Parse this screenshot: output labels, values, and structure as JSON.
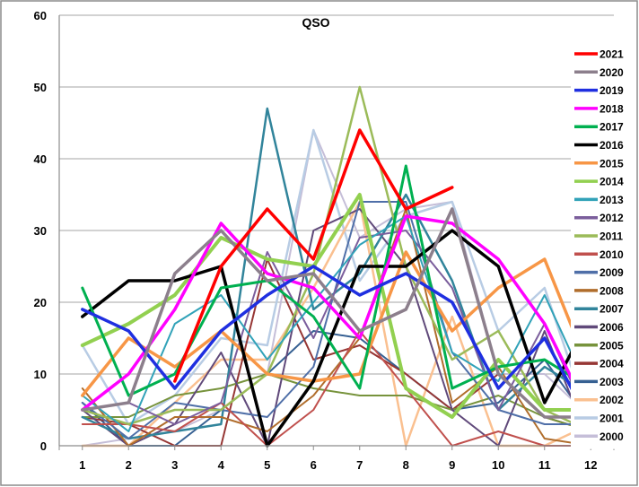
{
  "chart_data": {
    "type": "line",
    "title": "QSO",
    "xlabel": "",
    "ylabel": "",
    "x": [
      1,
      2,
      3,
      4,
      5,
      6,
      7,
      8,
      9,
      10,
      11,
      12
    ],
    "x_tick_labels": [
      "1",
      "2",
      "3",
      "4",
      "5",
      "6",
      "7",
      "8",
      "9",
      "10",
      "11",
      "12"
    ],
    "ylim": [
      0,
      60
    ],
    "y_ticks": [
      0,
      10,
      20,
      30,
      40,
      50,
      60
    ],
    "y_tick_labels": [
      "0",
      "10",
      "20",
      "30",
      "40",
      "50",
      "60"
    ],
    "grid": "horizontal",
    "legend_position": "right",
    "series": [
      {
        "name": "2021",
        "color": "#ff0000",
        "width": 3.5,
        "values": [
          null,
          null,
          9,
          25,
          33,
          26,
          44,
          33,
          36,
          null,
          null,
          null
        ]
      },
      {
        "name": "2020",
        "color": "#8c7f8c",
        "width": 3.5,
        "values": [
          5,
          6,
          24,
          30,
          23,
          24,
          16,
          19,
          33,
          10,
          4,
          4
        ]
      },
      {
        "name": "2019",
        "color": "#1f2fe0",
        "width": 3.5,
        "values": [
          19,
          16,
          8,
          16,
          21,
          25,
          21,
          24,
          20,
          8,
          15,
          3
        ]
      },
      {
        "name": "2018",
        "color": "#ff00ff",
        "width": 3.5,
        "values": [
          5,
          10,
          19,
          31,
          24,
          22,
          15,
          32,
          31,
          26,
          17,
          4
        ]
      },
      {
        "name": "2017",
        "color": "#00b050",
        "width": 3,
        "values": [
          22,
          7,
          10,
          22,
          23,
          18,
          8,
          39,
          8,
          11,
          12,
          8
        ]
      },
      {
        "name": "2016",
        "color": "#000000",
        "width": 3.5,
        "values": [
          18,
          23,
          23,
          25,
          0,
          9,
          25,
          25,
          30,
          25,
          6,
          18
        ]
      },
      {
        "name": "2015",
        "color": "#f79646",
        "width": 3.5,
        "values": [
          7,
          15,
          11,
          16,
          10,
          9,
          10,
          27,
          16,
          22,
          26,
          10
        ]
      },
      {
        "name": "2014",
        "color": "#92d050",
        "width": 4,
        "values": [
          14,
          17,
          21,
          29,
          26,
          25,
          35,
          8,
          4,
          12,
          5,
          5
        ]
      },
      {
        "name": "2013",
        "color": "#31a2b8",
        "width": 2,
        "values": [
          7,
          2,
          17,
          21,
          12,
          20,
          28,
          32,
          13,
          9,
          21,
          7
        ]
      },
      {
        "name": "2012",
        "color": "#7b5e9c",
        "width": 2,
        "values": [
          5,
          6,
          3,
          6,
          27,
          15,
          29,
          30,
          22,
          5,
          17,
          3
        ]
      },
      {
        "name": "2011",
        "color": "#9bbb59",
        "width": 2.5,
        "values": [
          5,
          3,
          5,
          5,
          10,
          24,
          50,
          25,
          12,
          16,
          5,
          2
        ]
      },
      {
        "name": "2010",
        "color": "#c0504d",
        "width": 2,
        "values": [
          3,
          3,
          2,
          6,
          0,
          5,
          16,
          8,
          0,
          2,
          0,
          0
        ]
      },
      {
        "name": "2009",
        "color": "#4f6fa8",
        "width": 2,
        "values": [
          6,
          1,
          6,
          5,
          4,
          11,
          34,
          34,
          13,
          5,
          3,
          3
        ]
      },
      {
        "name": "2008",
        "color": "#b06d2c",
        "width": 2,
        "values": [
          8,
          0,
          4,
          4,
          2,
          7,
          15,
          33,
          6,
          11,
          1,
          0
        ]
      },
      {
        "name": "2007",
        "color": "#31849b",
        "width": 2.5,
        "values": [
          4,
          1,
          2,
          3,
          47,
          19,
          24,
          35,
          23,
          5,
          11,
          7
        ]
      },
      {
        "name": "2006",
        "color": "#60497a",
        "width": 2,
        "values": [
          5,
          0,
          3,
          13,
          0,
          30,
          33,
          25,
          5,
          0,
          16,
          0
        ]
      },
      {
        "name": "2005",
        "color": "#77933c",
        "width": 2,
        "values": [
          4,
          4,
          7,
          8,
          10,
          8,
          7,
          7,
          5,
          7,
          4,
          2
        ]
      },
      {
        "name": "2004",
        "color": "#963634",
        "width": 2,
        "values": [
          4,
          3,
          0,
          0,
          26,
          12,
          14,
          10,
          5,
          10,
          4,
          2
        ]
      },
      {
        "name": "2003",
        "color": "#366092",
        "width": 2,
        "values": [
          6,
          0,
          0,
          5,
          10,
          16,
          15,
          10,
          5,
          6,
          12,
          3
        ]
      },
      {
        "name": "2002",
        "color": "#fac090",
        "width": 2.5,
        "values": [
          0,
          0,
          6,
          12,
          12,
          22,
          34,
          0,
          18,
          0,
          0,
          3
        ]
      },
      {
        "name": "2001",
        "color": "#b8cce4",
        "width": 2.5,
        "values": [
          14,
          3,
          7,
          15,
          14,
          44,
          23,
          32,
          34,
          16,
          22,
          3
        ]
      },
      {
        "name": "2000",
        "color": "#c5bed8",
        "width": 2,
        "values": [
          0,
          1,
          2,
          5,
          10,
          44,
          29,
          33,
          34,
          10,
          10,
          4
        ]
      }
    ]
  }
}
